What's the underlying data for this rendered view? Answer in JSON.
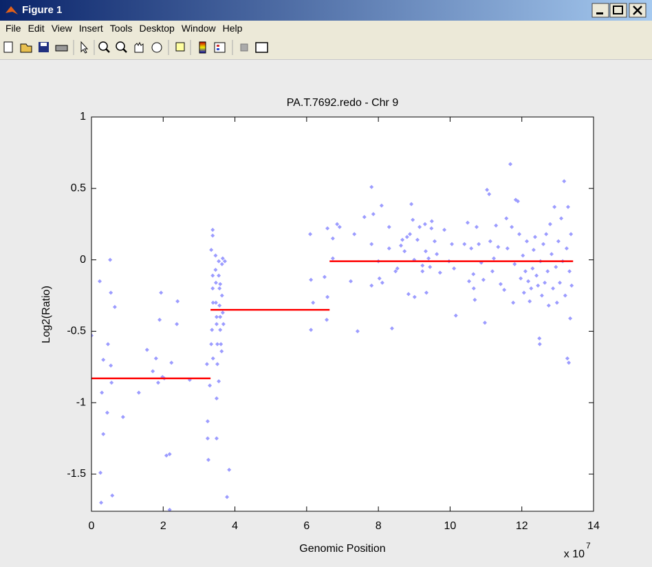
{
  "window": {
    "title": "Figure 1",
    "menu": [
      "File",
      "Edit",
      "View",
      "Insert",
      "Tools",
      "Desktop",
      "Window",
      "Help"
    ]
  },
  "chart_data": {
    "type": "scatter",
    "title": "PA.T.7692.redo - Chr 9",
    "x_label": "Genomic Position",
    "y_label": "Log2(Ratio)",
    "x_scale_base": "x 10",
    "x_scale_exponent": 7,
    "xlim": [
      0,
      14
    ],
    "ylim": [
      -1.76,
      1
    ],
    "xticks": [
      0,
      2,
      4,
      6,
      8,
      10,
      12,
      14
    ],
    "yticks": [
      -1.5,
      -1,
      -0.5,
      0,
      0.5,
      1
    ],
    "grid": false,
    "color": "#9c9cff",
    "x": [
      0,
      0.23,
      0.29,
      0.33,
      0.25,
      0.27,
      0.33,
      0.44,
      0.46,
      0.52,
      0.54,
      0.54,
      0.58,
      0.65,
      0.56,
      0.88,
      1.32,
      1.55,
      1.71,
      1.8,
      1.9,
      1.94,
      1.86,
      1.98,
      2.03,
      2.09,
      2.18,
      2.18,
      2.23,
      2.4,
      2.38,
      2.74,
      3.24,
      3.24,
      3.26,
      3.22,
      3.38,
      3.38,
      3.34,
      3.38,
      3.38,
      3.39,
      3.36,
      3.34,
      3.39,
      3.3,
      3.46,
      3.46,
      3.47,
      3.47,
      3.49,
      3.49,
      3.51,
      3.51,
      3.55,
      3.55,
      3.57,
      3.57,
      3.59,
      3.59,
      3.61,
      3.63,
      3.64,
      3.64,
      3.66,
      3.68,
      3.66,
      3.49,
      3.55,
      3.49,
      3.72,
      3.78,
      3.84,
      3.59,
      6.1,
      6.12,
      6.12,
      6.18,
      6.58,
      6.58,
      6.56,
      6.5,
      6.73,
      6.85,
      6.92,
      6.73,
      7.23,
      7.33,
      7.42,
      7.61,
      7.81,
      7.81,
      7.81,
      7.86,
      8,
      8.03,
      8.09,
      8.11,
      8.3,
      8.3,
      8.38,
      8.48,
      8.53,
      8.63,
      8.67,
      8.73,
      8.8,
      8.84,
      8.88,
      8.92,
      8.96,
      9,
      9.01,
      9.09,
      9.15,
      9.23,
      9.23,
      9.3,
      9.32,
      9.34,
      9.4,
      9.44,
      9.48,
      9.49,
      9.57,
      9.63,
      9.72,
      9.84,
      9.97,
      10.05,
      10.11,
      10.16,
      10.4,
      10.49,
      10.53,
      10.59,
      10.65,
      10.66,
      10.69,
      10.74,
      10.8,
      10.87,
      10.93,
      10.97,
      11.03,
      11.09,
      11.12,
      11.18,
      11.22,
      11.28,
      11.34,
      11.41,
      11.51,
      11.57,
      11.6,
      11.68,
      11.72,
      11.76,
      11.8,
      11.83,
      11.89,
      11.93,
      11.97,
      12.03,
      12.06,
      12.1,
      12.14,
      12.18,
      12.22,
      12.26,
      12.3,
      12.33,
      12.37,
      12.41,
      12.45,
      12.49,
      12.5,
      12.52,
      12.56,
      12.6,
      12.64,
      12.68,
      12.72,
      12.75,
      12.79,
      12.83,
      12.87,
      12.91,
      12.95,
      12.98,
      13.02,
      13.06,
      13.1,
      13.14,
      13.18,
      13.21,
      13.25,
      13.27,
      13.29,
      13.31,
      13.33,
      13.35,
      13.37,
      13.39
    ],
    "y": [
      -0.53,
      -0.15,
      -0.93,
      -0.7,
      -1.49,
      -1.7,
      -1.22,
      -1.07,
      -0.59,
      0,
      -0.23,
      -0.74,
      -1.65,
      -0.33,
      -0.86,
      -1.1,
      -0.93,
      -0.63,
      -0.78,
      -0.69,
      -0.42,
      -0.23,
      -0.86,
      -0.82,
      -0.83,
      -1.37,
      -1.36,
      -1.75,
      -0.72,
      -0.29,
      -0.45,
      -0.84,
      -1.13,
      -1.25,
      -1.4,
      -0.73,
      0.21,
      0.17,
      0.07,
      -0.11,
      -0.2,
      -0.3,
      -0.49,
      -0.59,
      -0.69,
      -0.88,
      0.03,
      -0.07,
      -0.16,
      -0.3,
      -0.4,
      -0.45,
      -0.59,
      -0.73,
      -0.01,
      -0.11,
      -0.2,
      -0.32,
      -0.4,
      -0.49,
      -0.59,
      -0.64,
      -0.03,
      -0.25,
      -0.37,
      -0.45,
      0.01,
      -0.97,
      -0.85,
      -1.25,
      -0.01,
      -1.66,
      -1.47,
      -0.17,
      0.18,
      -0.14,
      -0.49,
      -0.3,
      0.22,
      -0.26,
      -0.42,
      -0.12,
      0.15,
      0.25,
      0.23,
      0.01,
      -0.15,
      0.18,
      -0.5,
      0.3,
      0.51,
      0.11,
      -0.18,
      0.32,
      -0.01,
      -0.13,
      0.38,
      -0.16,
      0.23,
      0.08,
      -0.48,
      -0.08,
      -0.06,
      0.1,
      0.14,
      0.06,
      0.16,
      -0.24,
      0.18,
      0.39,
      0.28,
      0,
      -0.26,
      0.14,
      0.23,
      -0.04,
      -0.08,
      0.25,
      0.06,
      -0.23,
      0.01,
      -0.05,
      0.22,
      0.27,
      0.13,
      0.04,
      -0.09,
      0.21,
      -0.01,
      0.11,
      -0.06,
      -0.39,
      0.11,
      0.26,
      -0.15,
      0.08,
      -0.1,
      -0.2,
      -0.28,
      0.23,
      0.11,
      -0.02,
      -0.14,
      -0.44,
      0.49,
      0.46,
      0.13,
      -0.08,
      0.01,
      0.24,
      0.09,
      -0.17,
      -0.21,
      0.29,
      0.08,
      0.67,
      0.23,
      -0.3,
      -0.03,
      0.42,
      0.41,
      0.18,
      -0.13,
      0.03,
      -0.23,
      -0.08,
      0.13,
      -0.15,
      -0.29,
      -0.2,
      -0.06,
      0.07,
      0.16,
      -0.11,
      -0.18,
      -0.55,
      -0.59,
      -0.01,
      -0.25,
      0.11,
      -0.16,
      0.18,
      -0.08,
      -0.32,
      0.25,
      0.04,
      -0.2,
      0.37,
      -0.05,
      -0.3,
      0.13,
      -0.16,
      0.29,
      -0.01,
      0.55,
      -0.25,
      0.08,
      -0.69,
      0.37,
      -0.72,
      -0.08,
      -0.41,
      0.18,
      -0.18
    ],
    "line_color": "#ff0000",
    "segments": [
      {
        "x": [
          0,
          3.32
        ],
        "y": [
          -0.83,
          -0.83
        ]
      },
      {
        "x": [
          3.32,
          6.64
        ],
        "y": [
          -0.35,
          -0.35
        ]
      },
      {
        "x": [
          6.64,
          13.43
        ],
        "y": [
          -0.01,
          -0.01
        ]
      }
    ]
  }
}
